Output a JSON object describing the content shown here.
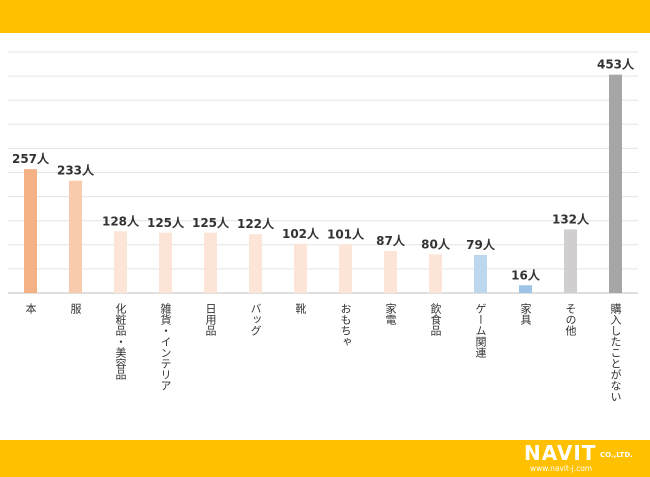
{
  "chart_data": {
    "type": "bar",
    "categories": [
      "本",
      "服",
      "化粧品・美容品",
      "雑貨・インテリア",
      "日用品",
      "バッグ",
      "靴",
      "おもちゃ",
      "家電",
      "飲食品",
      "ゲーム関連",
      "家具",
      "その他",
      "購入したことがない"
    ],
    "values": [
      257,
      233,
      128,
      125,
      125,
      122,
      102,
      101,
      87,
      80,
      79,
      16,
      132,
      453
    ],
    "value_labels": [
      "257人",
      "233人",
      "128人",
      "125人",
      "125人",
      "122人",
      "102人",
      "101人",
      "87人",
      "80人",
      "79人",
      "16人",
      "132人",
      "453人"
    ],
    "bar_colors": [
      "#F4B183",
      "#F8CBAD",
      "#FCE4D6",
      "#FCE4D6",
      "#FCE4D6",
      "#FCE4D6",
      "#FCE4D6",
      "#FCE4D6",
      "#FCE4D6",
      "#FCE4D6",
      "#BDD7EE",
      "#9DC3E6",
      "#D0CECE",
      "#A6A6A6"
    ],
    "ylim": [
      0,
      500
    ],
    "grid": true,
    "title": "",
    "xlabel": "",
    "ylabel": ""
  },
  "brand": {
    "logo_main": "NAVIT",
    "logo_suffix": "CO.,LTD.",
    "logo_url": "www.navit-j.com",
    "band_color": "#FFC000"
  }
}
